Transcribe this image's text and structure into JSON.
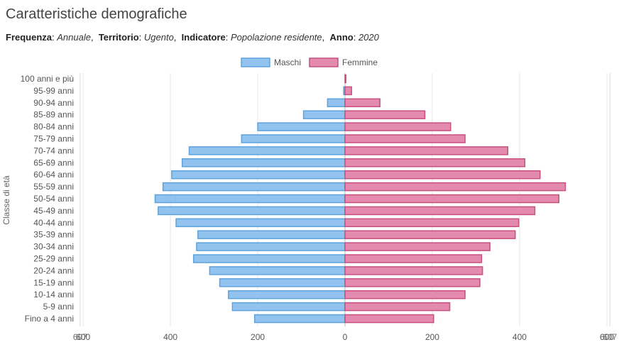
{
  "title": "Caratteristiche demografiche",
  "subtitle": {
    "freq_label": "Frequenza",
    "freq_value": "Annuale",
    "terr_label": "Territorio",
    "terr_value": "Ugento",
    "ind_label": "Indicatore",
    "ind_value": "Popolazione residente",
    "anno_label": "Anno",
    "anno_value": "2020"
  },
  "colors": {
    "male_fill": "#91c3ee",
    "male_stroke": "#5fa3dd",
    "female_fill": "#e38aae",
    "female_stroke": "#c7507f"
  },
  "chart_data": {
    "type": "bar",
    "orientation": "horizontal",
    "ylabel": "Classe di età",
    "categories": [
      "100 anni e più",
      "95-99 anni",
      "90-94 anni",
      "85-89 anni",
      "80-84 anni",
      "75-79 anni",
      "70-74 anni",
      "65-69 anni",
      "60-64 anni",
      "55-59 anni",
      "50-54 anni",
      "45-49 anni",
      "40-44 anni",
      "35-39 anni",
      "30-34 anni",
      "25-29 anni",
      "20-24 anni",
      "15-19 anni",
      "10-14 anni",
      "5-9 anni",
      "Fino a 4 anni"
    ],
    "series": [
      {
        "name": "Maschi",
        "values": [
          0,
          3,
          40,
          95,
          200,
          237,
          357,
          373,
          397,
          417,
          435,
          428,
          387,
          337,
          340,
          347,
          310,
          287,
          267,
          258,
          207
        ]
      },
      {
        "name": "Femmine",
        "values": [
          2,
          15,
          80,
          183,
          242,
          275,
          373,
          412,
          447,
          505,
          490,
          435,
          398,
          390,
          332,
          313,
          315,
          309,
          275,
          240,
          203
        ]
      }
    ],
    "xlim": [
      -607,
      607
    ],
    "xticks": [
      -600,
      -400,
      -200,
      0,
      200,
      400,
      600
    ],
    "xtick_labels": [
      "600",
      "400",
      "200",
      "0",
      "200",
      "400",
      "600"
    ],
    "xlim_labels": [
      "607",
      "607"
    ],
    "legend": "top-center",
    "grid": true
  }
}
